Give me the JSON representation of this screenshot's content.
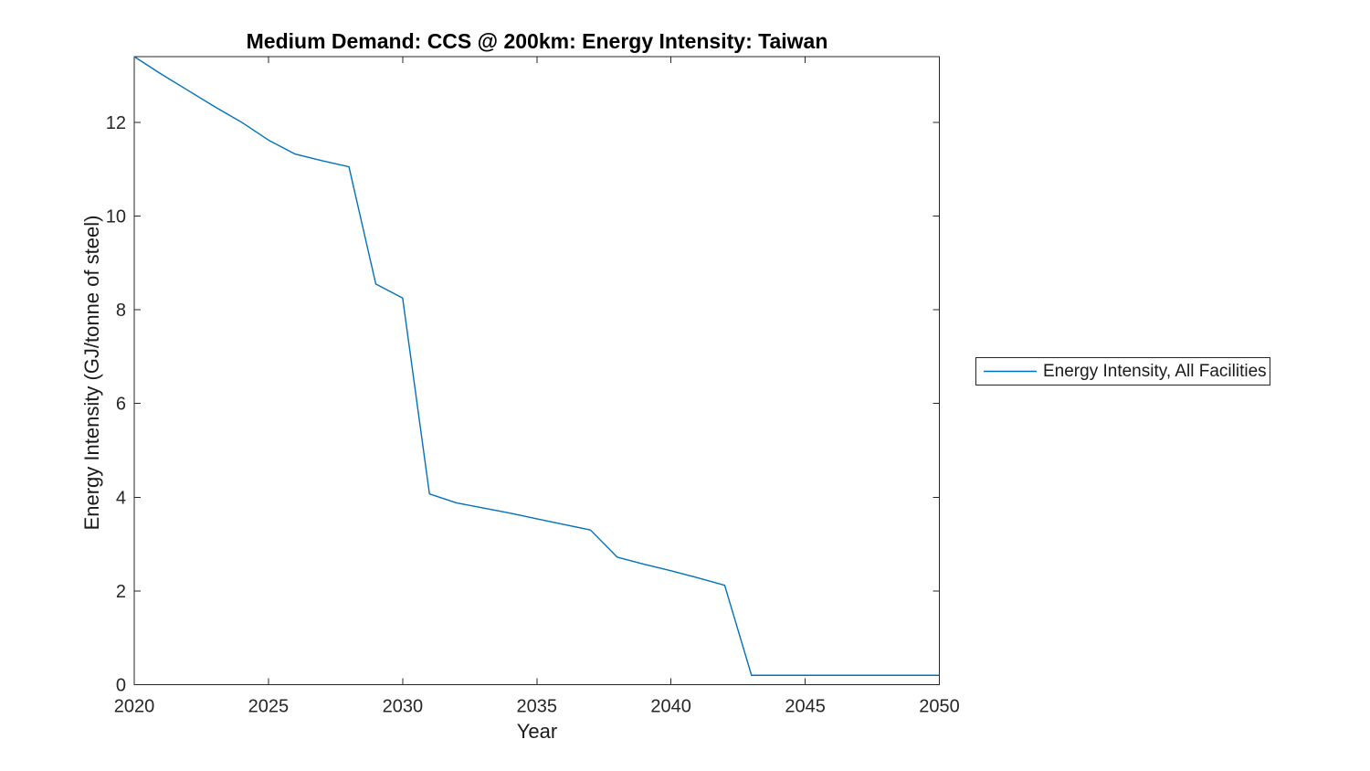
{
  "chart_data": {
    "type": "line",
    "title": "Medium Demand: CCS @ 200km: Energy Intensity: Taiwan",
    "xlabel": "Year",
    "ylabel": "Energy Intensity (GJ/tonne of steel)",
    "xlim": [
      2020,
      2050
    ],
    "ylim": [
      0,
      13.4
    ],
    "xticks": [
      2020,
      2025,
      2030,
      2035,
      2040,
      2045,
      2050
    ],
    "yticks": [
      0,
      2,
      4,
      6,
      8,
      10,
      12
    ],
    "grid": false,
    "legend_position": "outside-right",
    "series": [
      {
        "name": "Energy Intensity, All Facilities",
        "color": "#0072BD",
        "x": [
          2020,
          2021,
          2022,
          2023,
          2024,
          2025,
          2026,
          2027,
          2028,
          2029,
          2030,
          2031,
          2032,
          2033,
          2034,
          2035,
          2036,
          2037,
          2038,
          2039,
          2040,
          2041,
          2042,
          2043,
          2044,
          2045,
          2046,
          2047,
          2048,
          2049,
          2050
        ],
        "y": [
          13.4,
          13.03,
          12.68,
          12.33,
          12.0,
          11.62,
          11.32,
          11.18,
          11.05,
          8.55,
          8.25,
          4.07,
          3.88,
          3.77,
          3.66,
          3.54,
          3.42,
          3.3,
          2.72,
          2.57,
          2.43,
          2.28,
          2.12,
          0.2,
          0.2,
          0.2,
          0.2,
          0.2,
          0.2,
          0.2,
          0.2
        ]
      }
    ]
  },
  "colors": {
    "axis": "#262626",
    "line": "#0072BD",
    "background": "#ffffff"
  }
}
